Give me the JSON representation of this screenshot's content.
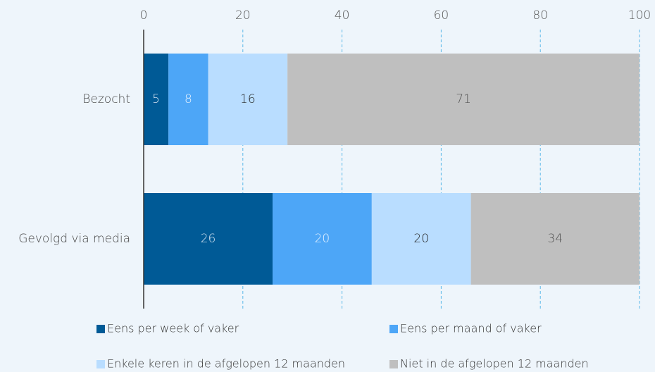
{
  "chart_data": {
    "type": "bar",
    "orientation": "horizontal",
    "stacked": true,
    "categories": [
      "Bezocht",
      "Gevolgd via media"
    ],
    "series": [
      {
        "name": "Eens per week of vaker",
        "color": "#005a96",
        "label_color": "#d8e6f3",
        "values": [
          5,
          26
        ]
      },
      {
        "name": "Eens per maand of vaker",
        "color": "#4da6f7",
        "label_color": "#e6f2ff",
        "values": [
          8,
          20
        ]
      },
      {
        "name": "Enkele keren in de afgelopen 12 maanden",
        "color": "#b9ddff",
        "label_color": "#222222",
        "values": [
          16,
          20
        ]
      },
      {
        "name": "Niet in de afgelopen 12 maanden",
        "color": "#bfbfbf",
        "label_color": "#555555",
        "values": [
          71,
          34
        ]
      }
    ],
    "xlim": [
      0,
      100
    ],
    "xticks": [
      0,
      20,
      40,
      60,
      80,
      100
    ],
    "grid": true
  }
}
